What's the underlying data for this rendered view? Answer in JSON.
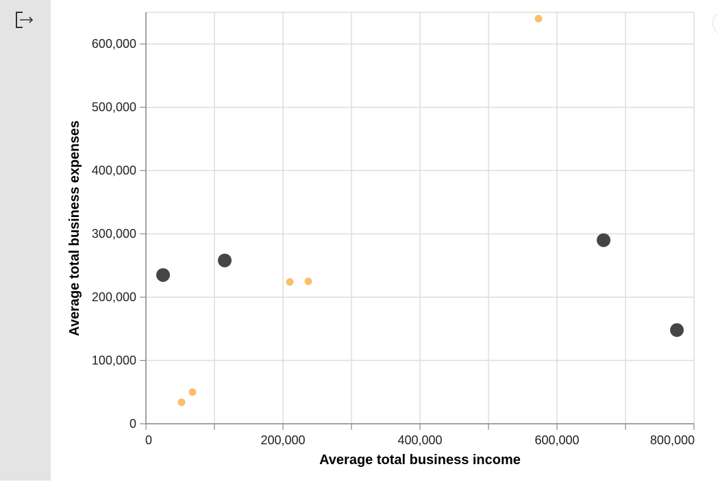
{
  "sidebar": {
    "exit_icon": "exit-to-right-icon"
  },
  "colors": {
    "sidebar_bg": "#e4e4e4",
    "grid": "#dddddd",
    "axis": "#888888",
    "series_large": "#454545",
    "series_small": "#fbbf6b"
  },
  "chart_data": {
    "type": "scatter",
    "title": "",
    "xlabel": "Average total business income",
    "ylabel": "Average total business expenses",
    "xlim": [
      0,
      800000
    ],
    "ylim": [
      0,
      650000
    ],
    "x_ticks": [
      0,
      100000,
      200000,
      300000,
      400000,
      500000,
      600000,
      700000,
      800000
    ],
    "x_tick_labels": [
      "0",
      "",
      "200,000",
      "",
      "400,000",
      "",
      "600,000",
      "",
      "800,000"
    ],
    "y_ticks": [
      0,
      100000,
      200000,
      300000,
      400000,
      500000,
      600000
    ],
    "y_tick_labels": [
      "0",
      "100,000",
      "200,000",
      "300,000",
      "400,000",
      "500,000",
      "600,000"
    ],
    "grid": true,
    "legend": "none",
    "series": [
      {
        "size": "large",
        "color": "#454545",
        "points": [
          {
            "x": 25000,
            "y": 235000
          },
          {
            "x": 115000,
            "y": 258000
          },
          {
            "x": 668000,
            "y": 290000
          },
          {
            "x": 775000,
            "y": 148000
          }
        ]
      },
      {
        "size": "small",
        "color": "#fbbf6b",
        "points": [
          {
            "x": 52000,
            "y": 34000
          },
          {
            "x": 68000,
            "y": 50000
          },
          {
            "x": 210000,
            "y": 224000
          },
          {
            "x": 237000,
            "y": 225000
          },
          {
            "x": 573000,
            "y": 640000
          }
        ]
      }
    ]
  }
}
